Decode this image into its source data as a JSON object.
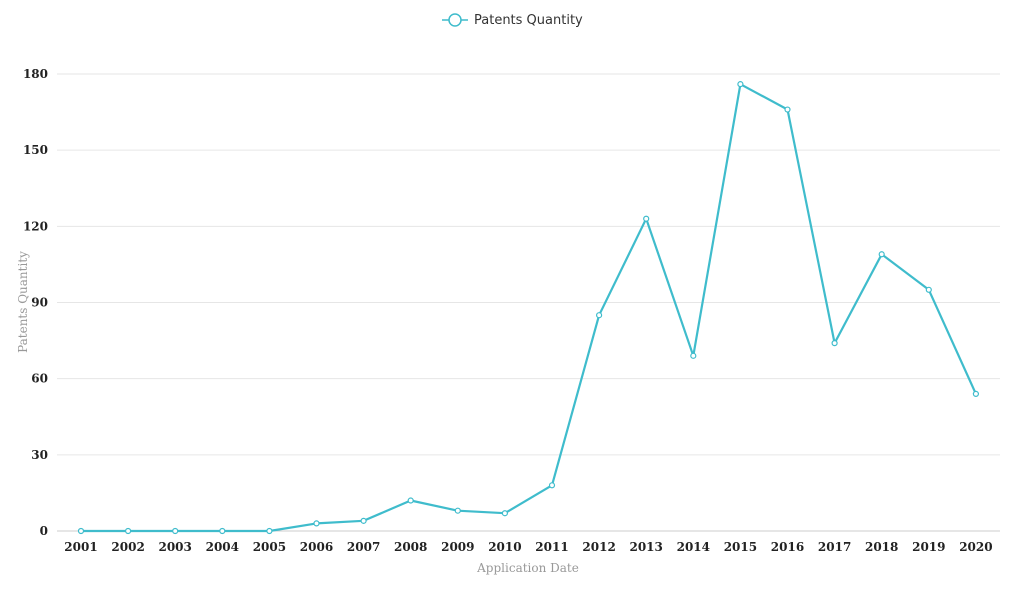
{
  "chart_data": {
    "type": "line",
    "title": "",
    "xlabel": "Application Date",
    "ylabel": "Patents Quantity",
    "ylim": [
      0,
      180
    ],
    "yticks": [
      0,
      30,
      60,
      90,
      120,
      150,
      180
    ],
    "grid": true,
    "legend_position": "top-center",
    "categories": [
      "2001",
      "2002",
      "2003",
      "2004",
      "2005",
      "2006",
      "2007",
      "2008",
      "2009",
      "2010",
      "2011",
      "2012",
      "2013",
      "2014",
      "2015",
      "2016",
      "2017",
      "2018",
      "2019",
      "2020"
    ],
    "series": [
      {
        "name": "Patents Quantity",
        "color": "#3fbccc",
        "values": [
          0,
          0,
          0,
          0,
          0,
          3,
          4,
          12,
          8,
          7,
          18,
          85,
          123,
          69,
          176,
          166,
          74,
          109,
          95,
          54
        ]
      }
    ]
  }
}
